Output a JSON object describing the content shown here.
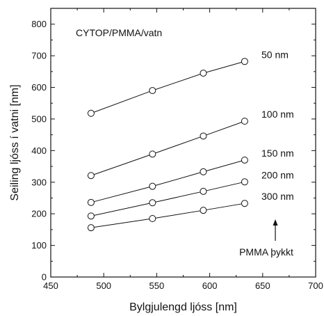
{
  "chart_data": {
    "type": "line",
    "title": "",
    "xlabel": "Bylgjulengd ljóss [nm]",
    "ylabel": "Seiling ljóss í vatni [nm]",
    "xlim": [
      450,
      700
    ],
    "ylim": [
      0,
      850
    ],
    "xticks": [
      450,
      500,
      550,
      600,
      650,
      700
    ],
    "yticks": [
      0,
      100,
      200,
      300,
      400,
      500,
      600,
      700,
      800
    ],
    "x": [
      488,
      546,
      594,
      633
    ],
    "series": [
      {
        "name": "50 nm",
        "values": [
          518,
          590,
          645,
          682
        ]
      },
      {
        "name": "100 nm",
        "values": [
          321,
          389,
          446,
          493
        ]
      },
      {
        "name": "150 nm",
        "values": [
          236,
          287,
          333,
          370
        ]
      },
      {
        "name": "200 nm",
        "values": [
          193,
          235,
          271,
          301
        ]
      },
      {
        "name": "300 nm",
        "values": [
          156,
          185,
          211,
          233
        ]
      }
    ],
    "annotations": {
      "system": "CYTOP/PMMA/vatn",
      "thickness_note": "PMMA þykkt"
    }
  }
}
